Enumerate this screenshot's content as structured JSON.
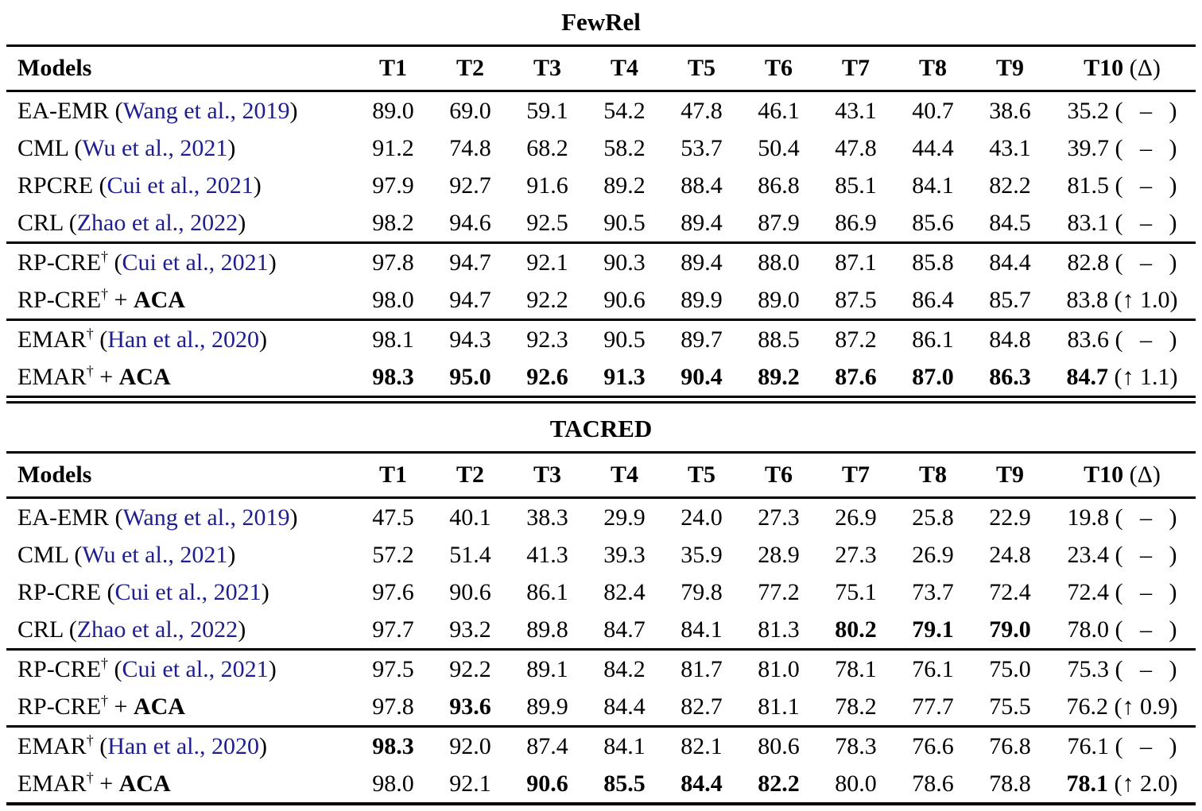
{
  "figure": {
    "citation_color": "#1e1e91",
    "text_color": "#000000",
    "background": "#ffffff",
    "format": {
      "delta_open": "(",
      "delta_close": ")"
    }
  },
  "tables": [
    {
      "title": "FewRel",
      "header": {
        "models_label": "Models",
        "task_labels": [
          "T1",
          "T2",
          "T3",
          "T4",
          "T5",
          "T6",
          "T7",
          "T8",
          "T9"
        ],
        "t10_label": "T10",
        "t10_suffix": "(Δ)"
      },
      "groups": [
        {
          "rows": [
            {
              "model": {
                "base": "EA-EMR",
                "sup": "",
                "mid": " (",
                "citation": "Wang et al., 2019",
                "close": ")",
                "bold_suffix": ""
              },
              "values": [
                "89.0",
                "69.0",
                "59.1",
                "54.2",
                "47.8",
                "46.1",
                "43.1",
                "40.7",
                "38.6"
              ],
              "bold": [
                0,
                0,
                0,
                0,
                0,
                0,
                0,
                0,
                0
              ],
              "t10": {
                "value": "35.2",
                "bold": 0,
                "delta": "–"
              }
            },
            {
              "model": {
                "base": "CML",
                "sup": "",
                "mid": " (",
                "citation": "Wu et al., 2021",
                "close": ")",
                "bold_suffix": ""
              },
              "values": [
                "91.2",
                "74.8",
                "68.2",
                "58.2",
                "53.7",
                "50.4",
                "47.8",
                "44.4",
                "43.1"
              ],
              "bold": [
                0,
                0,
                0,
                0,
                0,
                0,
                0,
                0,
                0
              ],
              "t10": {
                "value": "39.7",
                "bold": 0,
                "delta": "–"
              }
            },
            {
              "model": {
                "base": "RPCRE",
                "sup": "",
                "mid": " (",
                "citation": "Cui et al., 2021",
                "close": ")",
                "bold_suffix": ""
              },
              "values": [
                "97.9",
                "92.7",
                "91.6",
                "89.2",
                "88.4",
                "86.8",
                "85.1",
                "84.1",
                "82.2"
              ],
              "bold": [
                0,
                0,
                0,
                0,
                0,
                0,
                0,
                0,
                0
              ],
              "t10": {
                "value": "81.5",
                "bold": 0,
                "delta": "–"
              }
            },
            {
              "model": {
                "base": "CRL",
                "sup": "",
                "mid": " (",
                "citation": "Zhao et al., 2022",
                "close": ")",
                "bold_suffix": ""
              },
              "values": [
                "98.2",
                "94.6",
                "92.5",
                "90.5",
                "89.4",
                "87.9",
                "86.9",
                "85.6",
                "84.5"
              ],
              "bold": [
                0,
                0,
                0,
                0,
                0,
                0,
                0,
                0,
                0
              ],
              "t10": {
                "value": "83.1",
                "bold": 0,
                "delta": "–"
              }
            }
          ]
        },
        {
          "rows": [
            {
              "model": {
                "base": "RP-CRE",
                "sup": "†",
                "mid": " (",
                "citation": "Cui et al., 2021",
                "close": ")",
                "bold_suffix": ""
              },
              "values": [
                "97.8",
                "94.7",
                "92.1",
                "90.3",
                "89.4",
                "88.0",
                "87.1",
                "85.8",
                "84.4"
              ],
              "bold": [
                0,
                0,
                0,
                0,
                0,
                0,
                0,
                0,
                0
              ],
              "t10": {
                "value": "82.8",
                "bold": 0,
                "delta": "–"
              }
            },
            {
              "model": {
                "base": "RP-CRE",
                "sup": "†",
                "mid": " + ",
                "citation": "",
                "close": "",
                "bold_suffix": "ACA"
              },
              "values": [
                "98.0",
                "94.7",
                "92.2",
                "90.6",
                "89.9",
                "89.0",
                "87.5",
                "86.4",
                "85.7"
              ],
              "bold": [
                0,
                0,
                0,
                0,
                0,
                0,
                0,
                0,
                0
              ],
              "t10": {
                "value": "83.8",
                "bold": 0,
                "delta": "↑ 1.0"
              }
            }
          ]
        },
        {
          "rows": [
            {
              "model": {
                "base": "EMAR",
                "sup": "†",
                "mid": " (",
                "citation": "Han et al., 2020",
                "close": ")",
                "bold_suffix": ""
              },
              "values": [
                "98.1",
                "94.3",
                "92.3",
                "90.5",
                "89.7",
                "88.5",
                "87.2",
                "86.1",
                "84.8"
              ],
              "bold": [
                0,
                0,
                0,
                0,
                0,
                0,
                0,
                0,
                0
              ],
              "t10": {
                "value": "83.6",
                "bold": 0,
                "delta": "–"
              }
            },
            {
              "model": {
                "base": "EMAR",
                "sup": "†",
                "mid": " + ",
                "citation": "",
                "close": "",
                "bold_suffix": "ACA"
              },
              "values": [
                "98.3",
                "95.0",
                "92.6",
                "91.3",
                "90.4",
                "89.2",
                "87.6",
                "87.0",
                "86.3"
              ],
              "bold": [
                1,
                1,
                1,
                1,
                1,
                1,
                1,
                1,
                1
              ],
              "t10": {
                "value": "84.7",
                "bold": 1,
                "delta": "↑ 1.1"
              }
            }
          ]
        }
      ]
    },
    {
      "title": "TACRED",
      "header": {
        "models_label": "Models",
        "task_labels": [
          "T1",
          "T2",
          "T3",
          "T4",
          "T5",
          "T6",
          "T7",
          "T8",
          "T9"
        ],
        "t10_label": "T10",
        "t10_suffix": "(Δ)"
      },
      "groups": [
        {
          "rows": [
            {
              "model": {
                "base": "EA-EMR",
                "sup": "",
                "mid": " (",
                "citation": "Wang et al., 2019",
                "close": ")",
                "bold_suffix": ""
              },
              "values": [
                "47.5",
                "40.1",
                "38.3",
                "29.9",
                "24.0",
                "27.3",
                "26.9",
                "25.8",
                "22.9"
              ],
              "bold": [
                0,
                0,
                0,
                0,
                0,
                0,
                0,
                0,
                0
              ],
              "t10": {
                "value": "19.8",
                "bold": 0,
                "delta": "–"
              }
            },
            {
              "model": {
                "base": "CML",
                "sup": "",
                "mid": " (",
                "citation": "Wu et al., 2021",
                "close": ")",
                "bold_suffix": ""
              },
              "values": [
                "57.2",
                "51.4",
                "41.3",
                "39.3",
                "35.9",
                "28.9",
                "27.3",
                "26.9",
                "24.8"
              ],
              "bold": [
                0,
                0,
                0,
                0,
                0,
                0,
                0,
                0,
                0
              ],
              "t10": {
                "value": "23.4",
                "bold": 0,
                "delta": "–"
              }
            },
            {
              "model": {
                "base": "RP-CRE",
                "sup": "",
                "mid": " (",
                "citation": "Cui et al., 2021",
                "close": ")",
                "bold_suffix": ""
              },
              "values": [
                "97.6",
                "90.6",
                "86.1",
                "82.4",
                "79.8",
                "77.2",
                "75.1",
                "73.7",
                "72.4"
              ],
              "bold": [
                0,
                0,
                0,
                0,
                0,
                0,
                0,
                0,
                0
              ],
              "t10": {
                "value": "72.4",
                "bold": 0,
                "delta": "–"
              }
            },
            {
              "model": {
                "base": "CRL",
                "sup": "",
                "mid": " (",
                "citation": "Zhao et al., 2022",
                "close": ")",
                "bold_suffix": ""
              },
              "values": [
                "97.7",
                "93.2",
                "89.8",
                "84.7",
                "84.1",
                "81.3",
                "80.2",
                "79.1",
                "79.0"
              ],
              "bold": [
                0,
                0,
                0,
                0,
                0,
                0,
                1,
                1,
                1
              ],
              "t10": {
                "value": "78.0",
                "bold": 0,
                "delta": "–"
              }
            }
          ]
        },
        {
          "rows": [
            {
              "model": {
                "base": "RP-CRE",
                "sup": "†",
                "mid": " (",
                "citation": "Cui et al., 2021",
                "close": ")",
                "bold_suffix": ""
              },
              "values": [
                "97.5",
                "92.2",
                "89.1",
                "84.2",
                "81.7",
                "81.0",
                "78.1",
                "76.1",
                "75.0"
              ],
              "bold": [
                0,
                0,
                0,
                0,
                0,
                0,
                0,
                0,
                0
              ],
              "t10": {
                "value": "75.3",
                "bold": 0,
                "delta": "–"
              }
            },
            {
              "model": {
                "base": "RP-CRE",
                "sup": "†",
                "mid": " + ",
                "citation": "",
                "close": "",
                "bold_suffix": "ACA"
              },
              "values": [
                "97.8",
                "93.6",
                "89.9",
                "84.4",
                "82.7",
                "81.1",
                "78.2",
                "77.7",
                "75.5"
              ],
              "bold": [
                0,
                1,
                0,
                0,
                0,
                0,
                0,
                0,
                0
              ],
              "t10": {
                "value": "76.2",
                "bold": 0,
                "delta": "↑ 0.9"
              }
            }
          ]
        },
        {
          "rows": [
            {
              "model": {
                "base": "EMAR",
                "sup": "†",
                "mid": " (",
                "citation": "Han et al., 2020",
                "close": ")",
                "bold_suffix": ""
              },
              "values": [
                "98.3",
                "92.0",
                "87.4",
                "84.1",
                "82.1",
                "80.6",
                "78.3",
                "76.6",
                "76.8"
              ],
              "bold": [
                1,
                0,
                0,
                0,
                0,
                0,
                0,
                0,
                0
              ],
              "t10": {
                "value": "76.1",
                "bold": 0,
                "delta": "–"
              }
            },
            {
              "model": {
                "base": "EMAR",
                "sup": "†",
                "mid": " + ",
                "citation": "",
                "close": "",
                "bold_suffix": "ACA"
              },
              "values": [
                "98.0",
                "92.1",
                "90.6",
                "85.5",
                "84.4",
                "82.2",
                "80.0",
                "78.6",
                "78.8"
              ],
              "bold": [
                0,
                0,
                1,
                1,
                1,
                1,
                0,
                0,
                0
              ],
              "t10": {
                "value": "78.1",
                "bold": 1,
                "delta": "↑ 2.0"
              }
            }
          ]
        }
      ]
    }
  ]
}
